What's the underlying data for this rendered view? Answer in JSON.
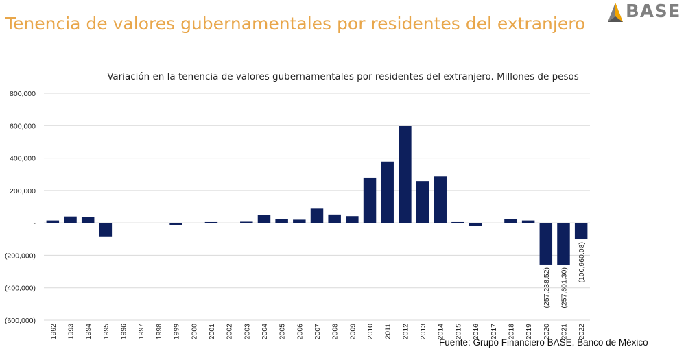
{
  "page": {
    "title": "Tenencia de valores gubernamentales por residentes del extranjero",
    "logo_text": "BASE",
    "source": "Fuente: Grupo Financiero BASE, Banco de México"
  },
  "colors": {
    "title": "#e8a64a",
    "bar": "#0d1f5c",
    "grid": "#d9d9d9",
    "logo": "#808080"
  },
  "chart_data": {
    "type": "bar",
    "title": "Variación en la tenencia de valores gubernamentales por residentes del extranjero. Millones de pesos",
    "categories": [
      "1992",
      "1993",
      "1994",
      "1995",
      "1996",
      "1997",
      "1998",
      "1999",
      "2000",
      "2001",
      "2002",
      "2003",
      "2004",
      "2005",
      "2006",
      "2007",
      "2008",
      "2009",
      "2010",
      "2011",
      "2012",
      "2013",
      "2014",
      "2015",
      "2016",
      "2017",
      "2018",
      "2019",
      "2020",
      "2021",
      "2022"
    ],
    "values": [
      15000,
      40000,
      38000,
      -83000,
      0,
      0,
      0,
      -12000,
      0,
      5000,
      0,
      7000,
      50000,
      25000,
      20000,
      88000,
      52000,
      42000,
      280000,
      378000,
      597000,
      258000,
      287000,
      5000,
      -20000,
      0,
      25000,
      15000,
      -257238.52,
      -257601.3,
      -100960.08
    ],
    "data_labels": {
      "28": "(257,238.52)",
      "29": "(257,601.30)",
      "30": "(100,960.08)"
    },
    "y_ticks": [
      800000,
      600000,
      400000,
      200000,
      0,
      -200000,
      -400000,
      -600000
    ],
    "y_tick_labels": [
      "800,000",
      "600,000",
      "400,000",
      "200,000",
      "-",
      "(200,000)",
      "(400,000)",
      "(600,000)"
    ],
    "ylim": [
      -600000,
      800000
    ],
    "grid": true,
    "legend": "none"
  }
}
